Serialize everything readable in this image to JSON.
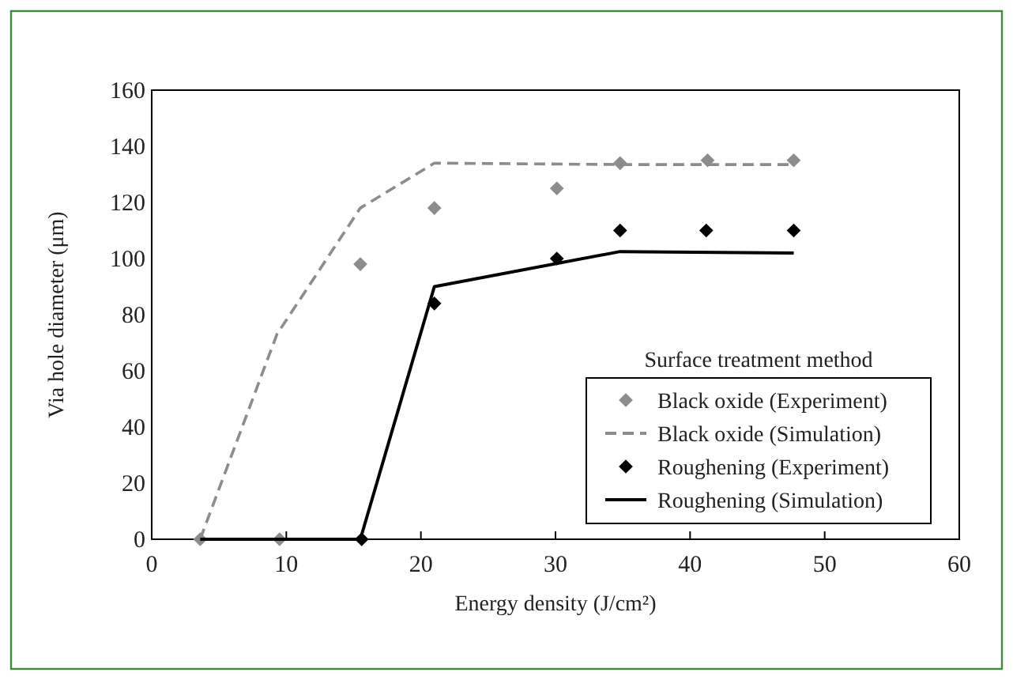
{
  "chart_data": {
    "type": "scatter",
    "xlabel": "Energy density (J/cm²)",
    "ylabel": "Via hole diameter (μm)",
    "legend_title": "Surface treatment method",
    "legend": "bottom right",
    "grid": false,
    "xlim": [
      0,
      60
    ],
    "xticks": [
      0,
      10,
      20,
      30,
      40,
      50,
      60
    ],
    "ylim": [
      0,
      160
    ],
    "yticks": [
      0,
      20,
      40,
      60,
      80,
      100,
      120,
      140,
      160
    ],
    "series": [
      {
        "name": "Black oxide (Experiment)",
        "marker": "diamond",
        "color": "#8c8c8c",
        "x": [
          3.6,
          9.5,
          15.5,
          21.0,
          30.1,
          34.8,
          41.3,
          47.7
        ],
        "values": [
          0,
          0,
          98,
          118,
          125,
          134,
          135,
          135
        ]
      },
      {
        "name": "Black oxide (Simulation)",
        "type": "line",
        "marker": "none",
        "line_style": "dashed",
        "color": "#8c8c8c",
        "x": [
          3.6,
          9.3,
          15.5,
          21.0,
          34.8,
          47.7
        ],
        "values": [
          0,
          73,
          118,
          134,
          133.5,
          133.5
        ]
      },
      {
        "name": "Roughening (Experiment)",
        "marker": "diamond",
        "color": "#000000",
        "x": [
          15.6,
          21.0,
          30.1,
          34.8,
          41.2,
          47.7
        ],
        "values": [
          0,
          84,
          100,
          110,
          110,
          110
        ]
      },
      {
        "name": "Roughening (Simulation)",
        "type": "line",
        "marker": "none",
        "line_style": "solid",
        "color": "#000000",
        "x": [
          3.6,
          15.5,
          21.0,
          34.8,
          47.7
        ],
        "values": [
          0,
          0,
          90,
          102.5,
          102
        ]
      }
    ]
  }
}
